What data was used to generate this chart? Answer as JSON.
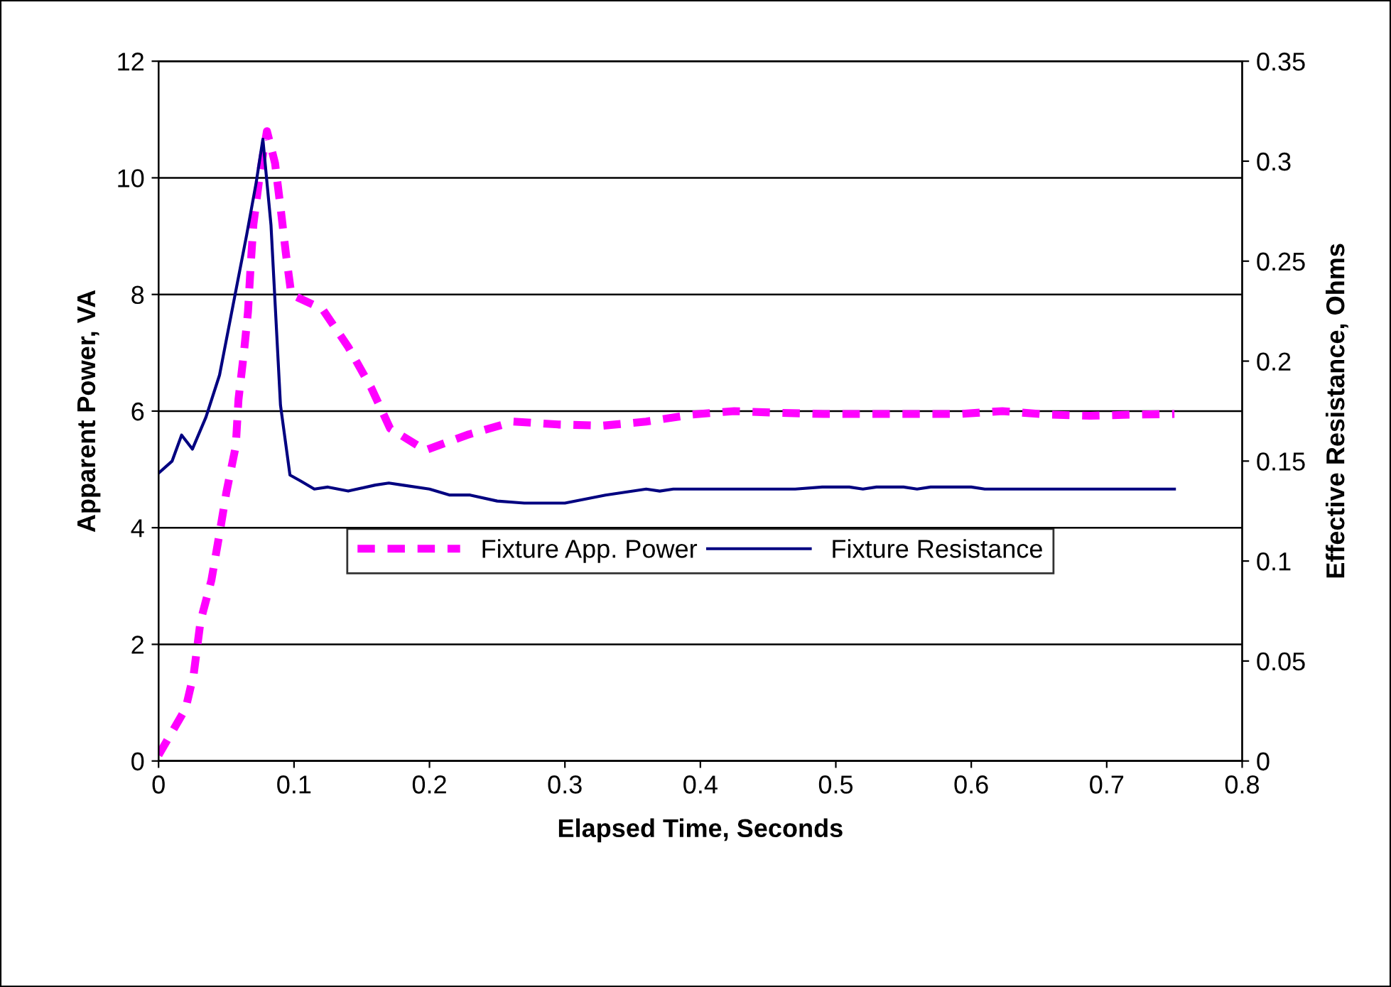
{
  "chart_data": {
    "type": "line",
    "xlabel": "Elapsed Time, Seconds",
    "ylabel": "Apparent Power, VA",
    "y2label": "Effective Resistance, Ohms",
    "xlim": [
      0,
      0.8
    ],
    "xticks": [
      0,
      0.1,
      0.2,
      0.3,
      0.4,
      0.5,
      0.6,
      0.7,
      0.8
    ],
    "ylim": [
      0,
      12
    ],
    "yticks": [
      0,
      2,
      4,
      6,
      8,
      10,
      12
    ],
    "y2lim": [
      0,
      0.35
    ],
    "y2ticks": [
      0,
      0.05,
      0.1,
      0.15,
      0.2,
      0.25,
      0.3,
      0.35
    ],
    "grid": "y",
    "legend": "center",
    "marker": "none",
    "series": [
      {
        "name": "Fixture App. Power",
        "color": "#ff00ff",
        "line_style": "dashed",
        "axis": "y",
        "x": [
          0,
          0.02,
          0.026,
          0.031,
          0.039,
          0.045,
          0.05,
          0.057,
          0.059,
          0.063,
          0.066,
          0.068,
          0.07,
          0.075,
          0.08,
          0.086,
          0.09,
          0.094,
          0.098,
          0.121,
          0.14,
          0.157,
          0.171,
          0.197,
          0.229,
          0.262,
          0.295,
          0.328,
          0.36,
          0.394,
          0.425,
          0.458,
          0.491,
          0.525,
          0.556,
          0.591,
          0.623,
          0.656,
          0.688,
          0.721,
          0.75
        ],
        "values": [
          0.1,
          0.9,
          1.5,
          2.4,
          3.1,
          3.9,
          4.6,
          5.4,
          6.2,
          7.0,
          7.7,
          8.5,
          9.2,
          10.1,
          10.8,
          10.25,
          9.5,
          8.7,
          8.0,
          7.75,
          7.1,
          6.4,
          5.7,
          5.33,
          5.6,
          5.82,
          5.77,
          5.75,
          5.82,
          5.94,
          6.0,
          5.97,
          5.95,
          5.95,
          5.95,
          5.95,
          6.0,
          5.94,
          5.92,
          5.94,
          5.95
        ]
      },
      {
        "name": "Fixture Resistance",
        "color": "#000080",
        "line_style": "solid",
        "axis": "y2",
        "x": [
          0,
          0.01,
          0.017,
          0.025,
          0.035,
          0.045,
          0.055,
          0.065,
          0.072,
          0.077,
          0.083,
          0.09,
          0.097,
          0.105,
          0.115,
          0.125,
          0.14,
          0.16,
          0.17,
          0.18,
          0.2,
          0.215,
          0.23,
          0.25,
          0.27,
          0.3,
          0.33,
          0.36,
          0.37,
          0.38,
          0.47,
          0.49,
          0.51,
          0.52,
          0.53,
          0.55,
          0.56,
          0.57,
          0.6,
          0.61,
          0.75
        ],
        "values": [
          0.144,
          0.15,
          0.163,
          0.156,
          0.172,
          0.193,
          0.228,
          0.263,
          0.289,
          0.311,
          0.268,
          0.178,
          0.143,
          0.14,
          0.136,
          0.137,
          0.135,
          0.138,
          0.139,
          0.138,
          0.136,
          0.133,
          0.133,
          0.13,
          0.129,
          0.129,
          0.133,
          0.136,
          0.135,
          0.136,
          0.136,
          0.137,
          0.137,
          0.136,
          0.137,
          0.137,
          0.136,
          0.137,
          0.137,
          0.136,
          0.136
        ]
      }
    ]
  }
}
